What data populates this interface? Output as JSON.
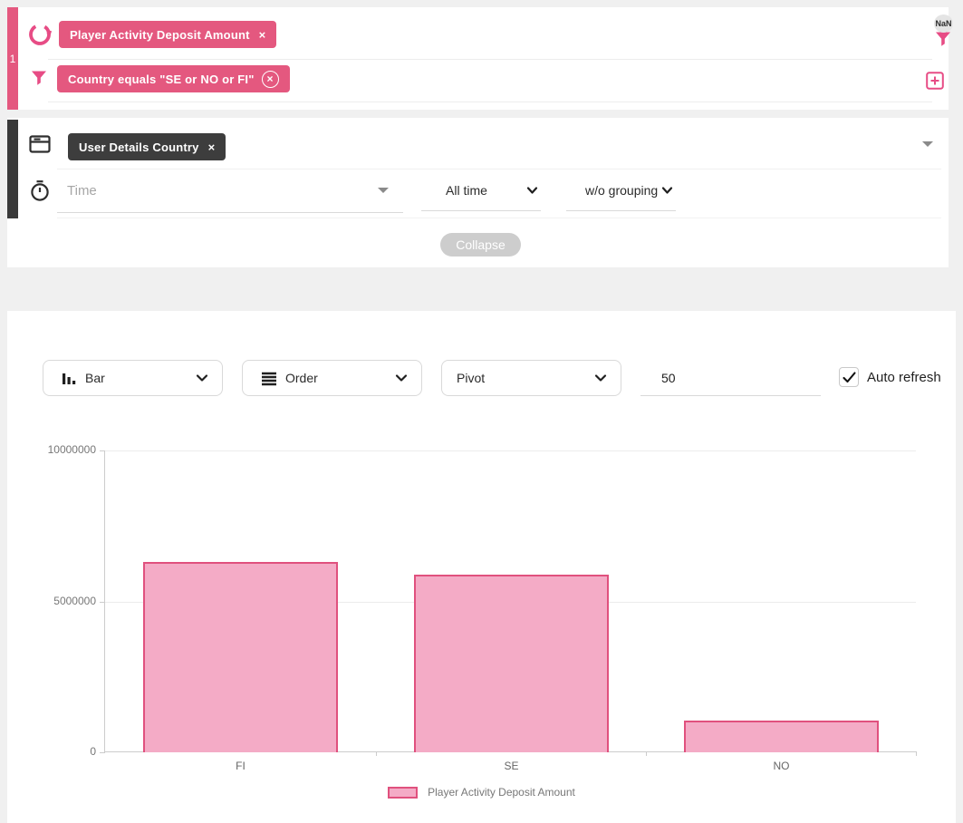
{
  "query_builder": {
    "row_number": "1",
    "measure_chip": "Player Activity Deposit Amount",
    "measure_chip_remove": "×",
    "filter_chip": "Country equals \"SE or NO or FI\"",
    "filter_chip_remove": "×",
    "nan_badge": "NaN"
  },
  "dimension_panel": {
    "dimension_chip": "User Details Country",
    "dimension_chip_remove": "×",
    "time_placeholder": "Time",
    "date_range_value": "All time",
    "granularity_value": "w/o grouping",
    "collapse_label": "Collapse"
  },
  "chart_controls": {
    "chart_type_value": "Bar",
    "order_value": "Order",
    "pivot_value": "Pivot",
    "limit_value": "50",
    "auto_refresh_label": "Auto refresh",
    "auto_refresh_checked": true
  },
  "colors": {
    "accent_pink": "#e4587f",
    "icon_pink": "#e74c85",
    "bar_fill": "#f4abc6",
    "bar_border": "#e0517e",
    "dark_chip": "#3d3d3d",
    "page_background": "#f0f0f0"
  },
  "chart_data": {
    "type": "bar",
    "categories": [
      "FI",
      "SE",
      "NO"
    ],
    "values": [
      6300000,
      5900000,
      1050000
    ],
    "series_name": "Player Activity Deposit Amount",
    "ylim": [
      0,
      10000000
    ],
    "yticks": [
      0,
      5000000,
      10000000
    ],
    "grid": true,
    "legend_position": "bottom"
  }
}
